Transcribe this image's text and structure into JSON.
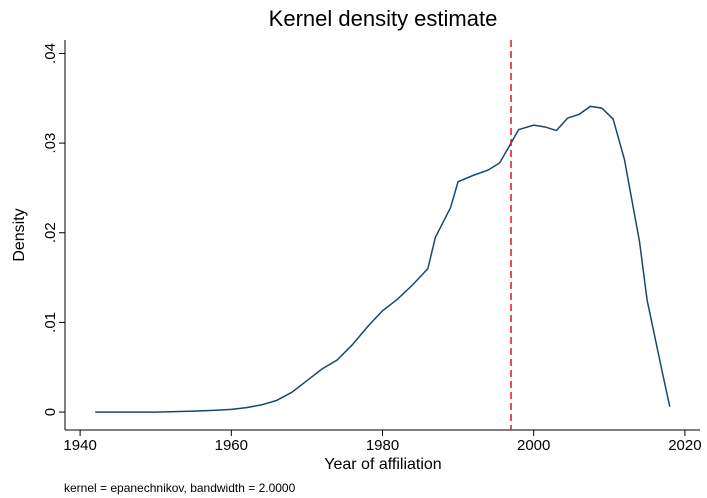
{
  "chart_data": {
    "type": "line",
    "title": "Kernel density estimate",
    "x_label": "Year of affiliation",
    "y_label": "Density",
    "note": "kernel = epanechnikov, bandwidth = 2.0000",
    "x": [
      1942,
      1950,
      1955,
      1958,
      1960,
      1962,
      1964,
      1966,
      1968,
      1970,
      1972,
      1974,
      1976,
      1978,
      1980,
      1982,
      1984,
      1986,
      1987,
      1989,
      1990,
      1992,
      1994,
      1995.5,
      1997,
      1998,
      2000,
      2001.5,
      2003,
      2004.5,
      2006,
      2007.5,
      2009,
      2010.5,
      2012,
      2014,
      2015,
      2017,
      2018
    ],
    "series": [
      {
        "name": "Density",
        "color": "#1a476f",
        "values": [
          0,
          0,
          0.0001,
          0.0002,
          0.0003,
          0.0005,
          0.0008,
          0.0013,
          0.0022,
          0.0035,
          0.0048,
          0.0058,
          0.0075,
          0.0095,
          0.0113,
          0.0126,
          0.0142,
          0.016,
          0.0195,
          0.0228,
          0.0257,
          0.0264,
          0.027,
          0.0278,
          0.03,
          0.0315,
          0.032,
          0.0318,
          0.0314,
          0.0328,
          0.0332,
          0.0341,
          0.0339,
          0.0327,
          0.0282,
          0.019,
          0.0125,
          0.0045,
          0.0006
        ]
      }
    ],
    "xline": {
      "value": 1997,
      "color": "#d7191c"
    },
    "xlim": [
      1938,
      2022
    ],
    "ylim": [
      -0.002,
      0.0415
    ],
    "xticks": [
      1940,
      1960,
      1980,
      2000,
      2020
    ],
    "yticks": [
      0,
      {
        "value": 0.01,
        "label": ".01"
      },
      {
        "value": 0.02,
        "label": ".02"
      },
      {
        "value": 0.03,
        "label": ".03"
      },
      {
        "value": 0.04,
        "label": ".04"
      }
    ]
  }
}
